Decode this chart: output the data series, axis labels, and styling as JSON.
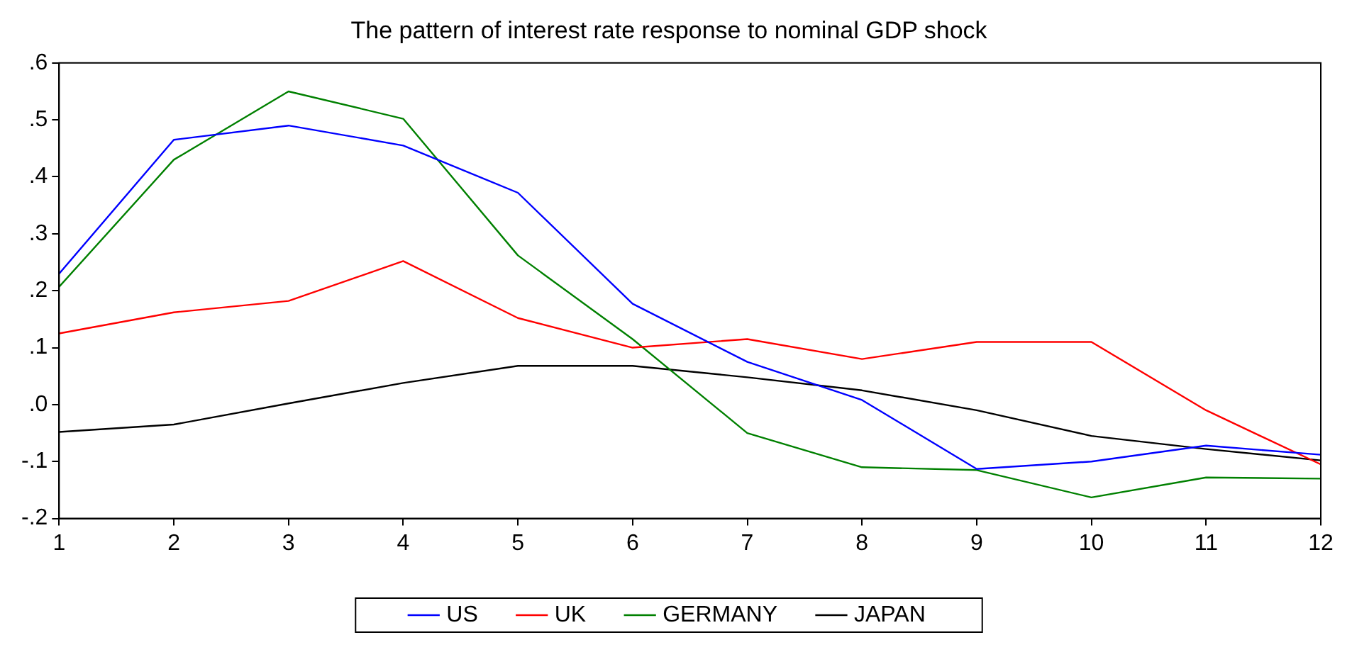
{
  "chart_data": {
    "type": "line",
    "title": "The pattern of interest rate response to nominal GDP shock",
    "x": [
      1,
      2,
      3,
      4,
      5,
      6,
      7,
      8,
      9,
      10,
      11,
      12
    ],
    "xlim": [
      1,
      12
    ],
    "xticks": [
      1,
      2,
      3,
      4,
      5,
      6,
      7,
      8,
      9,
      10,
      11,
      12
    ],
    "ylim": [
      -0.2,
      0.6
    ],
    "yticks": [
      {
        "value": -0.2,
        "label": "-.2"
      },
      {
        "value": -0.1,
        "label": "-.1"
      },
      {
        "value": 0,
        "label": ".0"
      },
      {
        "value": 0.1,
        "label": ".1"
      },
      {
        "value": 0.2,
        "label": ".2"
      },
      {
        "value": 0.3,
        "label": ".3"
      },
      {
        "value": 0.4,
        "label": ".4"
      },
      {
        "value": 0.5,
        "label": ".5"
      },
      {
        "value": 0.6,
        "label": ".6"
      }
    ],
    "grid": false,
    "legend": "bottom",
    "marker": "none",
    "line_style": "solid",
    "series": [
      {
        "name": "US",
        "color": "#0000ff",
        "values": [
          0.23,
          0.465,
          0.49,
          0.455,
          0.372,
          0.177,
          0.075,
          0.008,
          -0.113,
          -0.1,
          -0.072,
          -0.088
        ]
      },
      {
        "name": "UK",
        "color": "#ff0000",
        "values": [
          0.125,
          0.162,
          0.182,
          0.252,
          0.152,
          0.1,
          0.115,
          0.08,
          0.11,
          0.11,
          -0.01,
          -0.105
        ]
      },
      {
        "name": "GERMANY",
        "color": "#008000",
        "values": [
          0.207,
          0.43,
          0.55,
          0.502,
          0.262,
          0.115,
          -0.05,
          -0.11,
          -0.115,
          -0.163,
          -0.128,
          -0.13
        ]
      },
      {
        "name": "JAPAN",
        "color": "#000000",
        "values": [
          -0.048,
          -0.035,
          0.002,
          0.038,
          0.068,
          0.068,
          0.048,
          0.025,
          -0.01,
          -0.055,
          -0.078,
          -0.098
        ]
      }
    ]
  }
}
